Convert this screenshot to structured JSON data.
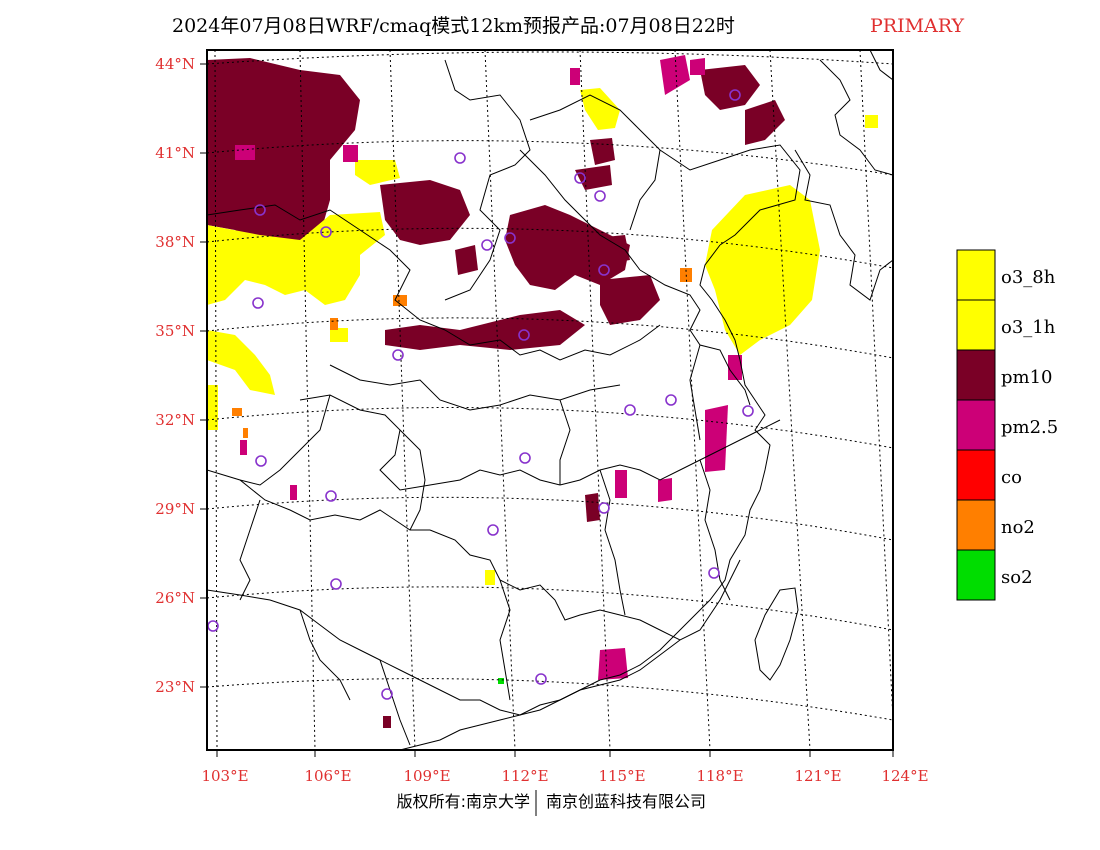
{
  "title": {
    "main": "2024年07月08日WRF/cmaq模式12km预报产品:07月08日22时",
    "tag": "PRIMARY"
  },
  "axes": {
    "lat_ticks": [
      "44°N",
      "41°N",
      "38°N",
      "35°N",
      "32°N",
      "29°N",
      "26°N",
      "23°N"
    ],
    "lon_ticks": [
      "103°E",
      "106°E",
      "109°E",
      "112°E",
      "115°E",
      "118°E",
      "121°E",
      "124°E"
    ]
  },
  "legend": {
    "items": [
      {
        "label": "o3_8h",
        "color": "#ffff00"
      },
      {
        "label": "o3_1h",
        "color": "#ffff00"
      },
      {
        "label": "pm10",
        "color": "#7a0026"
      },
      {
        "label": "pm2.5",
        "color": "#cc0077"
      },
      {
        "label": "co",
        "color": "#ff0000"
      },
      {
        "label": "no2",
        "color": "#ff7f00"
      },
      {
        "label": "so2",
        "color": "#00dd00"
      }
    ]
  },
  "footer": {
    "left": "版权所有:南京大学",
    "right": "南京创蓝科技有限公司"
  },
  "colors": {
    "o3": "#ffff00",
    "pm10": "#7a0026",
    "pm25": "#cc0077",
    "no2": "#ff7f00",
    "so2": "#00dd00",
    "station": "#8833cc"
  }
}
